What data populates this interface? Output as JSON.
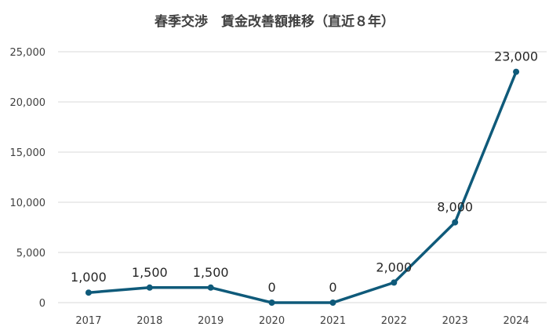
{
  "chart_data": {
    "type": "line",
    "title": "春季交渉　賃金改善額推移（直近８年）",
    "xlabel": "",
    "ylabel": "",
    "categories": [
      "2017",
      "2018",
      "2019",
      "2020",
      "2021",
      "2022",
      "2023",
      "2024"
    ],
    "series": [
      {
        "values": [
          1000,
          1500,
          1500,
          0,
          0,
          2000,
          8000,
          23000
        ],
        "labels": [
          "1,000",
          "1,500",
          "1,500",
          "0",
          "0",
          "2,000",
          "8,000",
          "23,000"
        ],
        "color": "#0f5a7a"
      }
    ],
    "ylim": [
      0,
      25000
    ],
    "yticks": [
      0,
      5000,
      10000,
      15000,
      20000,
      25000
    ],
    "ytick_labels": [
      "0",
      "5,000",
      "10,000",
      "15,000",
      "20,000",
      "25,000"
    ],
    "grid": true,
    "legend": "none"
  }
}
